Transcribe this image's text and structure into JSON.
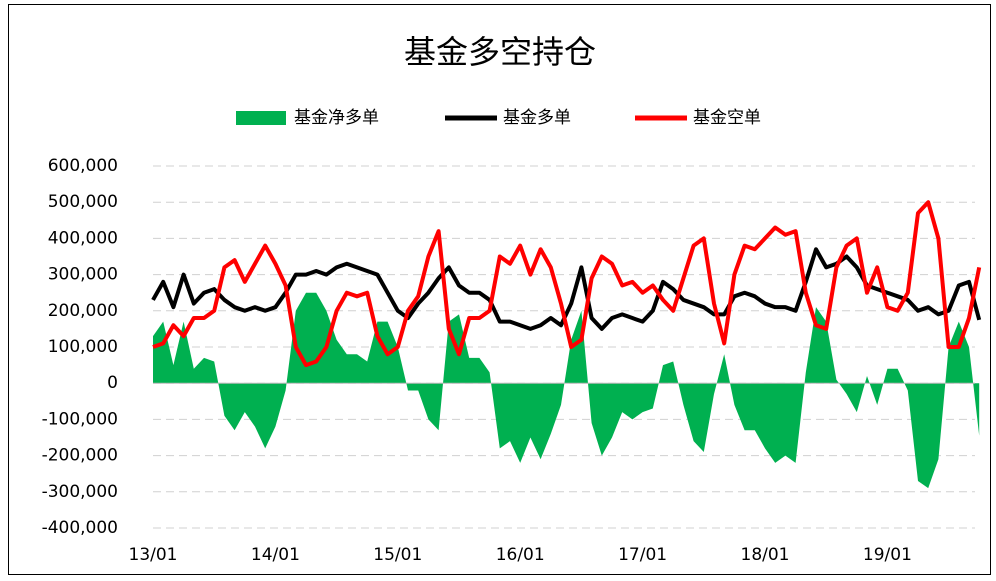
{
  "chart_data": {
    "type": "line",
    "title": "基金多空持仓",
    "categories": [
      "13/01",
      null,
      null,
      null,
      null,
      null,
      null,
      null,
      null,
      null,
      null,
      null,
      "14/01",
      null,
      null,
      null,
      null,
      null,
      null,
      null,
      null,
      null,
      null,
      null,
      "15/01",
      null,
      null,
      null,
      null,
      null,
      null,
      null,
      null,
      null,
      null,
      null,
      "16/01",
      null,
      null,
      null,
      null,
      null,
      null,
      null,
      null,
      null,
      null,
      null,
      "17/01",
      null,
      null,
      null,
      null,
      null,
      null,
      null,
      null,
      null,
      null,
      null,
      "18/01",
      null,
      null,
      null,
      null,
      null,
      null,
      null,
      null,
      null,
      null,
      null,
      "19/01",
      null,
      null,
      null,
      null,
      null,
      null,
      null,
      null,
      null
    ],
    "series": [
      {
        "name": "基金净多单",
        "color": "#00b050",
        "kind": "area",
        "values": [
          130000,
          170000,
          50000,
          170000,
          40000,
          70000,
          60000,
          -90000,
          -130000,
          -80000,
          -120000,
          -180000,
          -120000,
          -20000,
          200000,
          250000,
          250000,
          200000,
          120000,
          80000,
          80000,
          60000,
          170000,
          170000,
          100000,
          -20000,
          -20000,
          -100000,
          -130000,
          170000,
          190000,
          70000,
          70000,
          30000,
          -180000,
          -160000,
          -220000,
          -150000,
          -210000,
          -140000,
          -60000,
          120000,
          200000,
          -110000,
          -200000,
          -150000,
          -80000,
          -100000,
          -80000,
          -70000,
          50000,
          60000,
          -60000,
          -160000,
          -190000,
          -30000,
          80000,
          -60000,
          -130000,
          -130000,
          -180000,
          -220000,
          -200000,
          -220000,
          30000,
          210000,
          170000,
          10000,
          -30000,
          -80000,
          20000,
          -60000,
          40000,
          40000,
          -20000,
          -270000,
          -290000,
          -210000,
          100000,
          170000,
          100000,
          -145000
        ]
      },
      {
        "name": "基金多单",
        "color": "#000000",
        "kind": "line",
        "values": [
          230000,
          280000,
          210000,
          300000,
          220000,
          250000,
          260000,
          230000,
          210000,
          200000,
          210000,
          200000,
          210000,
          250000,
          300000,
          300000,
          310000,
          300000,
          320000,
          330000,
          320000,
          310000,
          300000,
          250000,
          200000,
          180000,
          220000,
          250000,
          290000,
          320000,
          270000,
          250000,
          250000,
          230000,
          170000,
          170000,
          160000,
          150000,
          160000,
          180000,
          160000,
          220000,
          320000,
          180000,
          150000,
          180000,
          190000,
          180000,
          170000,
          200000,
          280000,
          260000,
          230000,
          220000,
          210000,
          190000,
          190000,
          240000,
          250000,
          240000,
          220000,
          210000,
          210000,
          200000,
          280000,
          370000,
          320000,
          330000,
          350000,
          320000,
          270000,
          260000,
          250000,
          240000,
          230000,
          200000,
          210000,
          190000,
          200000,
          270000,
          280000,
          175000
        ]
      },
      {
        "name": "基金空单",
        "color": "#ff0000",
        "kind": "line",
        "values": [
          100000,
          110000,
          160000,
          130000,
          180000,
          180000,
          200000,
          320000,
          340000,
          280000,
          330000,
          380000,
          330000,
          270000,
          100000,
          50000,
          60000,
          100000,
          200000,
          250000,
          240000,
          250000,
          130000,
          80000,
          100000,
          200000,
          240000,
          350000,
          420000,
          150000,
          80000,
          180000,
          180000,
          200000,
          350000,
          330000,
          380000,
          300000,
          370000,
          320000,
          220000,
          100000,
          120000,
          290000,
          350000,
          330000,
          270000,
          280000,
          250000,
          270000,
          230000,
          200000,
          290000,
          380000,
          400000,
          220000,
          110000,
          300000,
          380000,
          370000,
          400000,
          430000,
          410000,
          420000,
          250000,
          160000,
          150000,
          320000,
          380000,
          400000,
          250000,
          320000,
          210000,
          200000,
          250000,
          470000,
          500000,
          400000,
          100000,
          100000,
          180000,
          320000
        ]
      }
    ],
    "ylim": [
      -400000,
      600000
    ],
    "yticks": [
      {
        "value": -400000,
        "label": "-400,000"
      },
      {
        "value": -300000,
        "label": "-300,000"
      },
      {
        "value": -200000,
        "label": "-200,000"
      },
      {
        "value": -100000,
        "label": "-100,000"
      },
      0,
      {
        "value": 100000,
        "label": "100,000"
      },
      {
        "value": 200000,
        "label": "200,000"
      },
      {
        "value": 300000,
        "label": "300,000"
      },
      {
        "value": 400000,
        "label": "400,000"
      },
      {
        "value": 500000,
        "label": "500,000"
      },
      {
        "value": 600000,
        "label": "600,000"
      }
    ],
    "grid": true,
    "legend": "top"
  }
}
